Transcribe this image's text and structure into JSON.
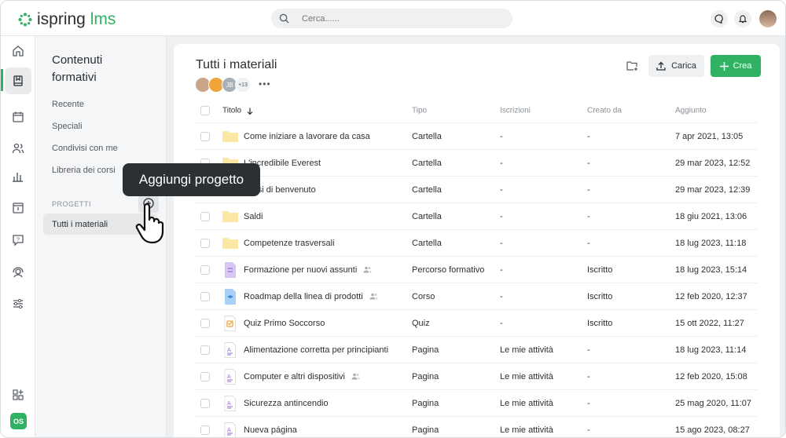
{
  "brand": {
    "name_part1": "ispring",
    "name_part2": "lms",
    "accent": "#2fb362"
  },
  "search": {
    "placeholder": "Cerca......"
  },
  "user": {
    "initials": "OS"
  },
  "sidebar": {
    "title": "Contenuti formativi",
    "items": [
      "Recente",
      "Speciali",
      "Condivisi con me",
      "Libreria dei corsi"
    ],
    "section": "PROGETTI",
    "selected": "Tutti i materiali"
  },
  "tooltip": "Aggiungi progetto",
  "main": {
    "title": "Tutti i materiali",
    "members": {
      "initials": "JB",
      "more": "+13"
    },
    "upload": "Carica",
    "create": "Crea",
    "columns": [
      "Titolo",
      "Tipo",
      "Iscrizioni",
      "Creato da",
      "Aggiunto"
    ],
    "rows": [
      {
        "icon": "folder",
        "name": "Come iniziare a lavorare da casa",
        "type": "Cartella",
        "isc": "-",
        "by": "-",
        "added": "7 apr 2021, 13:05"
      },
      {
        "icon": "folder",
        "name": "L'incredibile Everest",
        "type": "Cartella",
        "isc": "-",
        "by": "-",
        "added": "29 mar 2023, 12:52"
      },
      {
        "icon": "folder",
        "name": "Corsi di benvenuto",
        "type": "Cartella",
        "isc": "-",
        "by": "-",
        "added": "29 mar 2023, 12:39"
      },
      {
        "icon": "folder",
        "name": "Saldi",
        "type": "Cartella",
        "isc": "-",
        "by": "-",
        "added": "18 giu 2021, 13:06"
      },
      {
        "icon": "folder",
        "name": "Competenze trasversali",
        "type": "Cartella",
        "isc": "-",
        "by": "-",
        "added": "18 lug 2023, 11:18"
      },
      {
        "icon": "path",
        "name": "Formazione per nuovi assunti",
        "shared": true,
        "type": "Percorso formativo",
        "isc": "-",
        "by": "Iscritto",
        "added": "18 lug 2023, 15:14"
      },
      {
        "icon": "course",
        "name": "Roadmap della linea di prodotti",
        "shared": true,
        "type": "Corso",
        "isc": "-",
        "by": "Iscritto",
        "added": "12 feb 2020, 12:37"
      },
      {
        "icon": "quiz",
        "name": "Quiz Primo Soccorso",
        "type": "Quiz",
        "isc": "-",
        "by": "Iscritto",
        "added": "15 ott 2022, 11:27"
      },
      {
        "icon": "page",
        "name": "Alimentazione corretta per principianti",
        "type": "Pagina",
        "isc": "Le mie attività",
        "by": "-",
        "added": "18 lug 2023, 11:14"
      },
      {
        "icon": "page",
        "name": "Computer e altri dispositivi",
        "shared": true,
        "type": "Pagina",
        "isc": "Le mie attività",
        "by": "-",
        "added": "12 feb 2020, 15:08"
      },
      {
        "icon": "page",
        "name": "Sicurezza antincendio",
        "type": "Pagina",
        "isc": "Le mie attività",
        "by": "-",
        "added": "25 mag 2020, 11:07"
      },
      {
        "icon": "page",
        "name": "Nueva página",
        "type": "Pagina",
        "isc": "Le mie attività",
        "by": "-",
        "added": "15 ago 2023, 08:27"
      }
    ]
  }
}
